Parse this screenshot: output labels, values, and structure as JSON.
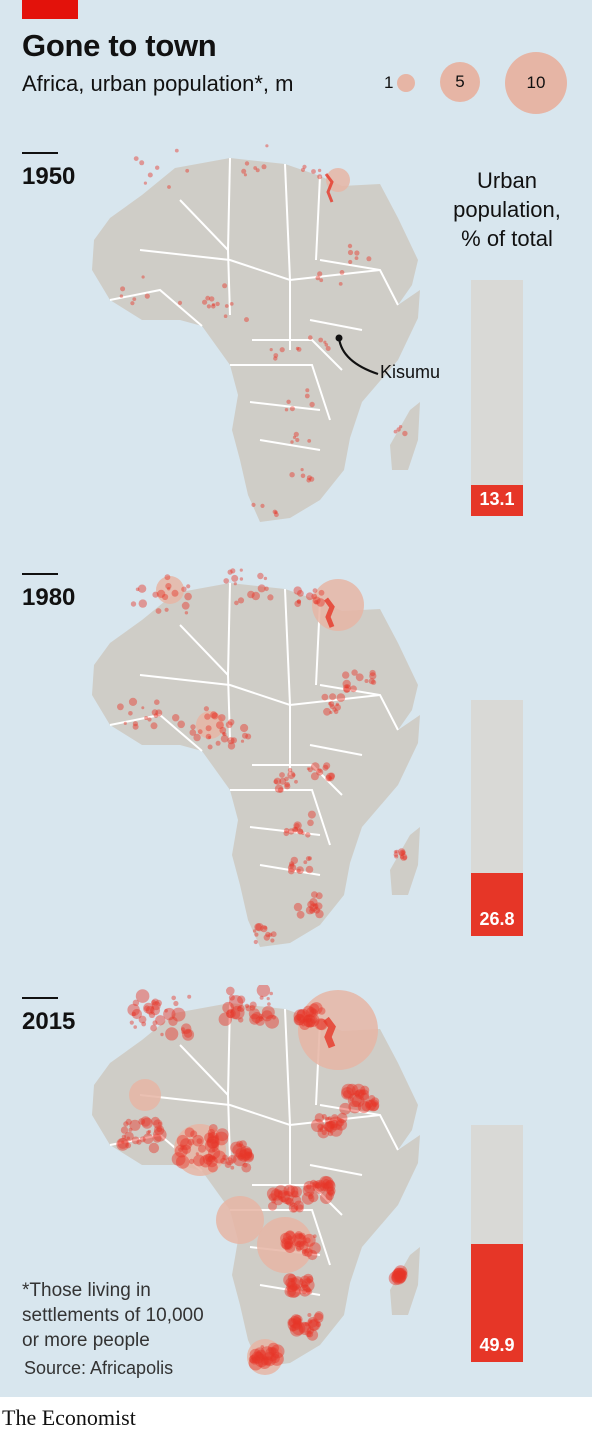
{
  "header": {
    "title": "Gone to town",
    "subtitle": "Africa, urban population*, m"
  },
  "size_legend": {
    "items": [
      {
        "label": "1",
        "value": 1
      },
      {
        "label": "5",
        "value": 5
      },
      {
        "label": "10",
        "value": 10
      }
    ]
  },
  "bar_heading": [
    "Urban",
    "population,",
    "% of total"
  ],
  "annotation": "Kisumu",
  "footnote": [
    "*Those living in",
    "settlements of 10,000",
    "or more people"
  ],
  "source": "Source: Africapolis",
  "brand": "The Economist",
  "colors": {
    "background": "#d8e6ee",
    "land": "#cfcdc7",
    "borders": "#ffffff",
    "city_bubbles": "#e63627",
    "bar_track": "#d9d9d6",
    "bar_fill": "#e63627",
    "accent": "#e3120b"
  },
  "chart_data": [
    {
      "type": "bar",
      "title": "1950",
      "ylabel": "Urban population, % of total",
      "categories": [
        "1950"
      ],
      "values": [
        13.1
      ],
      "value_labels": [
        "13.1"
      ],
      "ylim": [
        0,
        100
      ]
    },
    {
      "type": "bar",
      "title": "1980",
      "ylabel": "Urban population, % of total",
      "categories": [
        "1980"
      ],
      "values": [
        26.8
      ],
      "value_labels": [
        "26.8"
      ],
      "ylim": [
        0,
        100
      ]
    },
    {
      "type": "bar",
      "title": "2015",
      "ylabel": "Urban population, % of total",
      "categories": [
        "2015"
      ],
      "values": [
        49.9
      ],
      "value_labels": [
        "49.9"
      ],
      "ylim": [
        0,
        100
      ]
    }
  ]
}
